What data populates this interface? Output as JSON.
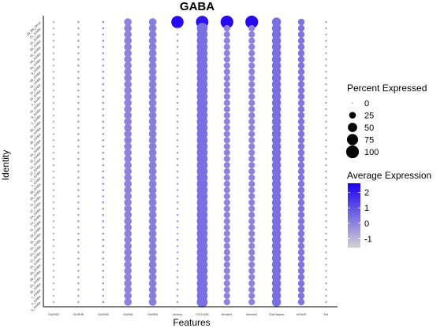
{
  "chart_data": {
    "type": "dot",
    "title": "GABA",
    "xlabel": "Features",
    "ylabel": "Identity",
    "features": [
      "GluRIID",
      "GluRIIE",
      "GluRIIA",
      "GluRIA",
      "GluRIB",
      "clumsy",
      "CG11155",
      "Nmdar1",
      "Nmdar2",
      "GluClalpha",
      "mGluR",
      "NA"
    ],
    "identities": [
      "24_Ms_Dmel",
      "21_GABA",
      "20_GABA",
      "29_GABA",
      "42_GABA",
      "44_GABA",
      "45_GABA",
      "9_GABA",
      "46_GABA",
      "16_GABA",
      "31_GABA",
      "26_GABA",
      "3_GABA",
      "40_GABA",
      "8_GABA",
      "2_GABA",
      "35_GABA",
      "30_GABA",
      "38_GABA",
      "5_GABA",
      "15_GABA",
      "32_GABA",
      "13_GABA",
      "27_GABA",
      "17_GABA",
      "1_GABA",
      "39_GABA",
      "18_GABA",
      "11_GABA",
      "37_GABA",
      "34_GABA",
      "14_GABA",
      "41_GABA",
      "19_GABA",
      "33_GABA",
      "10_GABA",
      "43_GABA",
      "12_GABA",
      "23_GABA",
      "25_GABA",
      "28_GABA",
      "22_GABA",
      "36_GABA",
      "7_GABA",
      "4_GABA",
      "6_GABA"
    ],
    "profiles": [
      {
        "pct": 1,
        "expr": -1.0
      },
      {
        "pct": 1,
        "expr": -0.5
      },
      {
        "pct": 1,
        "expr": -0.2
      },
      {
        "pct": 32,
        "expr": 0.0
      },
      {
        "pct": 34,
        "expr": 0.1
      },
      {
        "pct": 1,
        "expr": -0.5
      },
      {
        "pct": 70,
        "expr": 0.4
      },
      {
        "pct": 22,
        "expr": 0.0
      },
      {
        "pct": 22,
        "expr": 0.0
      },
      {
        "pct": 48,
        "expr": 0.4
      },
      {
        "pct": 24,
        "expr": 0.3
      },
      {
        "pct": 1,
        "expr": -0.7
      }
    ],
    "top_row": {
      "clumsy": {
        "pct": 92,
        "expr": 2.4
      },
      "CG11155": {
        "pct": 95,
        "expr": 2.2
      },
      "Nmdar1": {
        "pct": 100,
        "expr": 2.4
      },
      "Nmdar2": {
        "pct": 100,
        "expr": 2.4
      }
    },
    "legend": {
      "size_title": "Percent Expressed",
      "size_breaks": [
        0,
        25,
        50,
        75,
        100
      ],
      "color_title": "Average Expression",
      "color_breaks": [
        2,
        1,
        0,
        -1
      ],
      "color_range": [
        -1.6,
        2.6
      ],
      "low_color": "#d3d3d3",
      "high_color": "#1a00f0"
    }
  }
}
